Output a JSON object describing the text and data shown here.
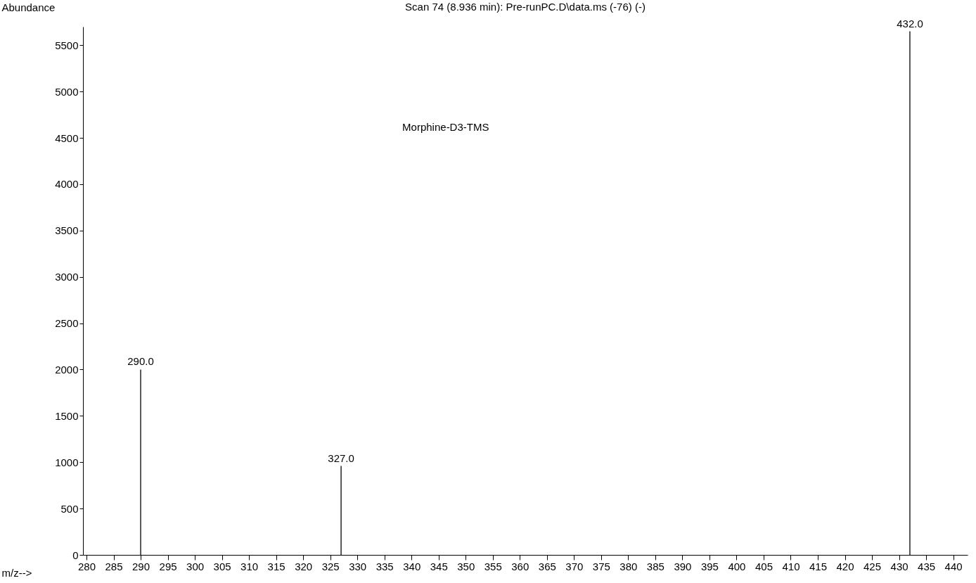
{
  "chart_data": {
    "type": "bar",
    "title": "Scan 74 (8.936 min): Pre-runPC.D\\data.ms (-76) (-)",
    "xlabel": "m/z-->",
    "ylabel": "Abundance",
    "x": [
      290,
      327,
      432
    ],
    "values": [
      2000,
      960,
      5650
    ],
    "color": "#000000",
    "xlim": [
      280,
      442
    ],
    "xticks": [
      280,
      285,
      290,
      295,
      300,
      305,
      310,
      315,
      320,
      325,
      330,
      335,
      340,
      345,
      350,
      355,
      360,
      365,
      370,
      375,
      380,
      385,
      390,
      395,
      400,
      405,
      410,
      415,
      420,
      425,
      430,
      435,
      440
    ],
    "ylim": [
      0,
      5700
    ],
    "yticks": [
      0,
      500,
      1000,
      1500,
      2000,
      2500,
      3000,
      3500,
      4000,
      4500,
      5000,
      5500
    ],
    "grid": false,
    "annotations": [
      "Morphine-D3-TMS",
      {
        "text": "290.0",
        "x": 290,
        "y": 2000
      },
      {
        "text": "327.0",
        "x": 327,
        "y": 960
      },
      {
        "text": "432.0",
        "x": 432,
        "y": 5650
      }
    ]
  }
}
